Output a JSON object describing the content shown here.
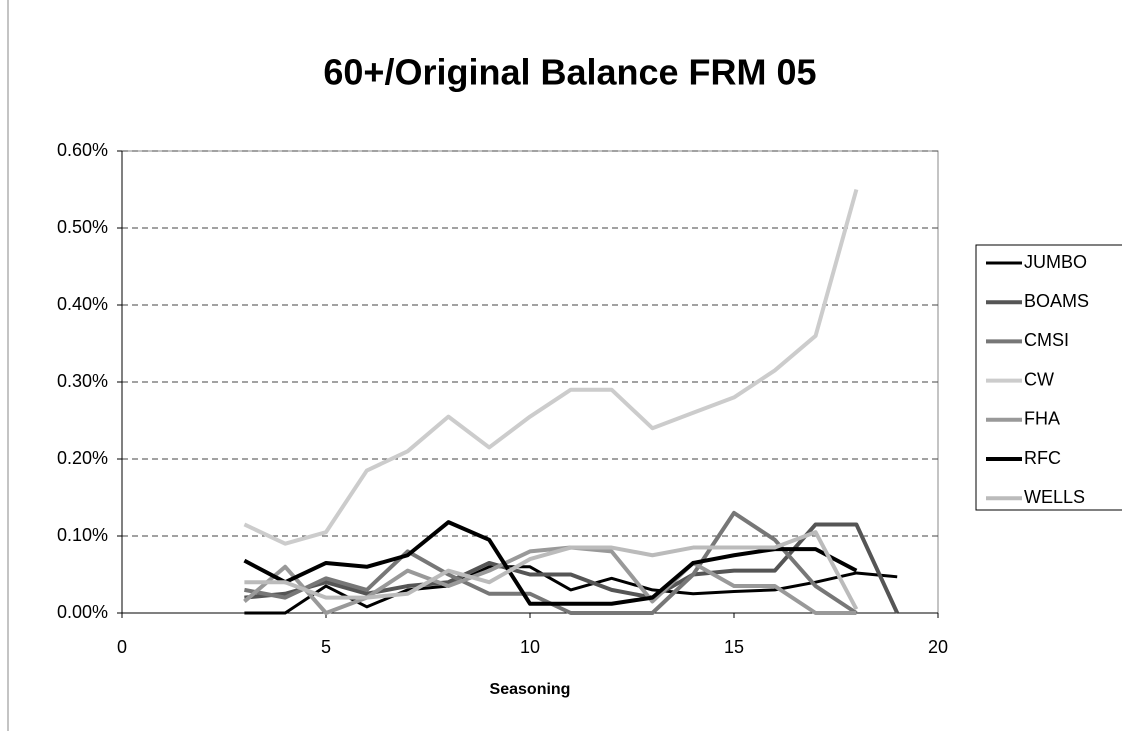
{
  "chart_data": {
    "type": "line",
    "title": "60+/Original Balance FRM 05",
    "xlabel": "Seasoning",
    "x": [
      3,
      4,
      5,
      6,
      7,
      8,
      9,
      10,
      11,
      12,
      13,
      14,
      15,
      16,
      17,
      18,
      19
    ],
    "xlim": [
      0,
      20
    ],
    "xticks": [
      0,
      5,
      10,
      15,
      20
    ],
    "ylim": [
      0,
      0.6
    ],
    "yticks": [
      {
        "value": 0,
        "label": "0.00%"
      },
      {
        "value": 0.1,
        "label": "0.10%"
      },
      {
        "value": 0.2,
        "label": "0.20%"
      },
      {
        "value": 0.3,
        "label": "0.30%"
      },
      {
        "value": 0.4,
        "label": "0.40%"
      },
      {
        "value": 0.5,
        "label": "0.50%"
      },
      {
        "value": 0.6,
        "label": "0.60%"
      }
    ],
    "grid": true,
    "legend": "right",
    "series": [
      {
        "name": "JUMBO",
        "color": "#000000",
        "values": [
          0,
          0,
          0.035,
          0.008,
          0.03,
          0.035,
          0.06,
          0.06,
          0.03,
          0.045,
          0.03,
          0.025,
          0.028,
          0.03,
          0.04,
          0.052,
          0.047
        ]
      },
      {
        "name": "BOAMS",
        "color": "#555555",
        "values": [
          0.02,
          0.025,
          0.04,
          0.025,
          0.035,
          0.04,
          0.065,
          0.05,
          0.05,
          0.03,
          0.02,
          0.05,
          0.055,
          0.055,
          0.115,
          0.115,
          0
        ]
      },
      {
        "name": "CMSI",
        "color": "#777777",
        "values": [
          0.03,
          0.02,
          0.045,
          0.03,
          0.08,
          0.05,
          0.025,
          0.025,
          0,
          0,
          0,
          0.05,
          0.13,
          0.095,
          0.035,
          0,
          null
        ]
      },
      {
        "name": "CW",
        "color": "#cccccc",
        "values": [
          0.115,
          0.09,
          0.105,
          0.185,
          0.21,
          0.255,
          0.215,
          0.255,
          0.29,
          0.29,
          0.24,
          0.26,
          0.28,
          0.315,
          0.36,
          0.55,
          null
        ]
      },
      {
        "name": "FHA",
        "color": "#999999",
        "values": [
          0.015,
          0.06,
          0,
          0.02,
          0.055,
          0.035,
          0.055,
          0.08,
          0.085,
          0.08,
          0.015,
          0.065,
          0.035,
          0.035,
          0,
          0,
          null
        ]
      },
      {
        "name": "RFC",
        "color": "#000000",
        "values": [
          0.068,
          0.04,
          0.065,
          0.06,
          0.075,
          0.118,
          0.095,
          0.012,
          0.012,
          0.012,
          0.02,
          0.065,
          0.075,
          0.083,
          0.083,
          0.055,
          null
        ]
      },
      {
        "name": "WELLS",
        "color": "#bbbbbb",
        "values": [
          0.04,
          0.04,
          0.02,
          0.02,
          0.025,
          0.055,
          0.04,
          0.07,
          0.085,
          0.085,
          0.075,
          0.085,
          0.085,
          0.085,
          0.105,
          0.005,
          null
        ]
      }
    ]
  }
}
